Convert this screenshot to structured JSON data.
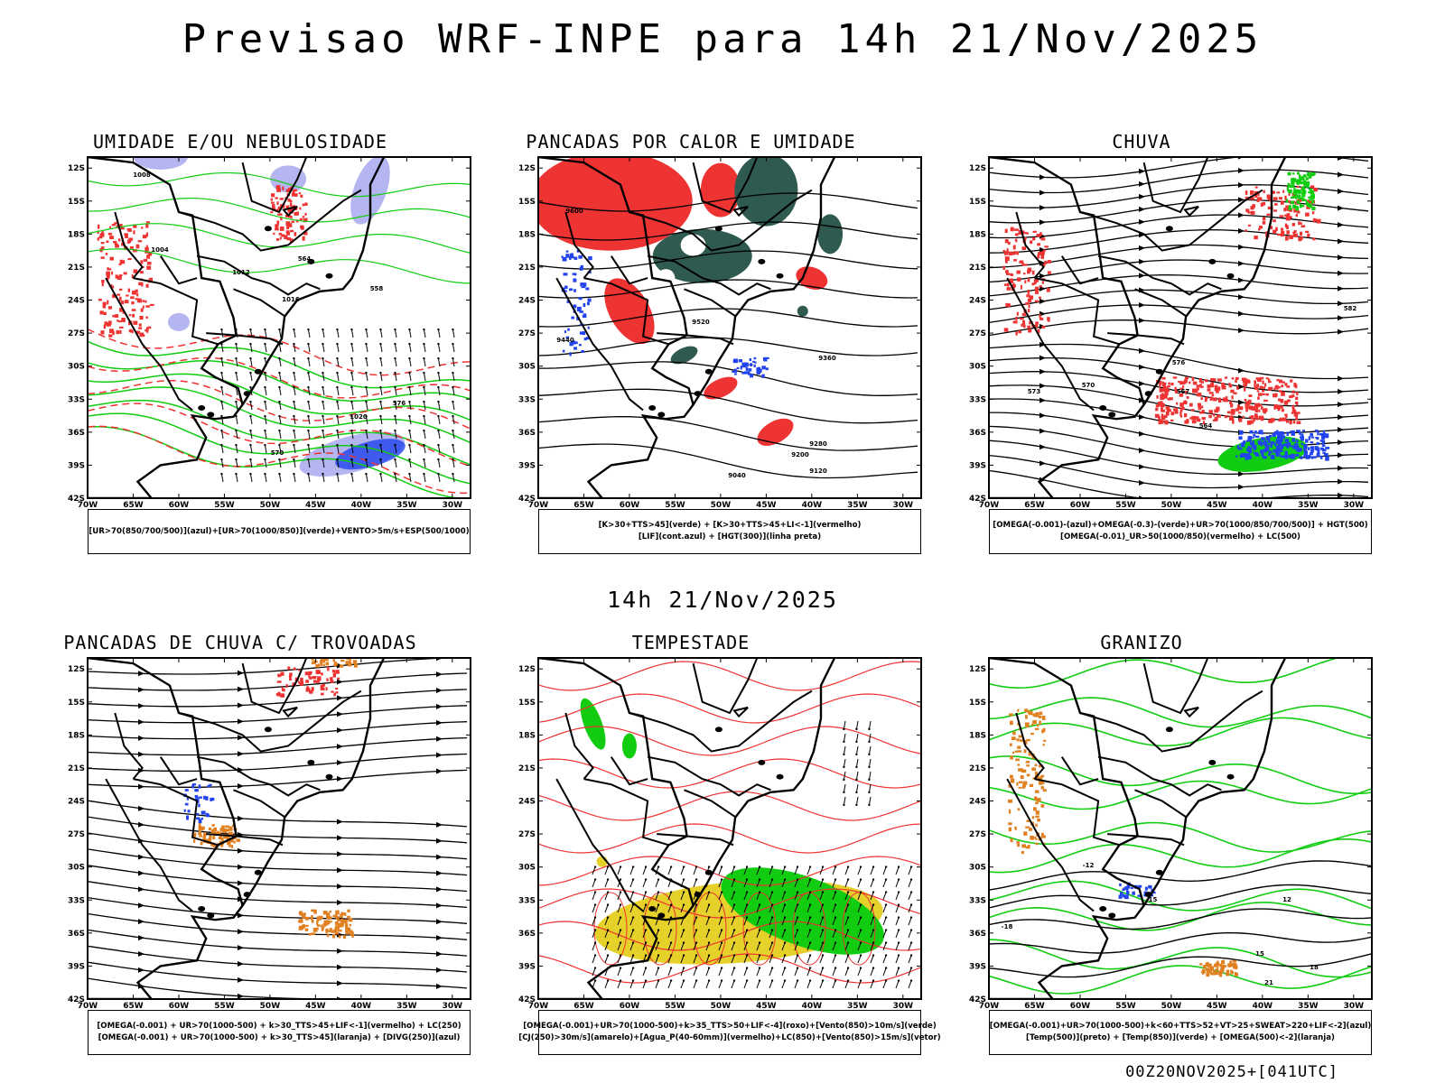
{
  "title": "Previsao WRF-INPE  para 14h 21/Nov/2025",
  "mid_title": "14h 21/Nov/2025",
  "footer": "00Z20NOV2025+[041UTC]",
  "axes": {
    "lat_labels": [
      "12S",
      "15S",
      "18S",
      "21S",
      "24S",
      "27S",
      "30S",
      "33S",
      "36S",
      "39S",
      "42S"
    ],
    "lon_labels": [
      "70W",
      "65W",
      "60W",
      "55W",
      "50W",
      "45W",
      "40W",
      "35W",
      "30W"
    ]
  },
  "panels": [
    {
      "title": "UMIDADE E/OU NEBULOSIDADE",
      "legend": [
        "[UR>70(850/700/500)](azul)+[UR>70(1000/850)](verde)+VENTO>5m/s+ESP(500/1000)"
      ],
      "contour_labels": [
        "1008",
        "1004",
        "1012",
        "1016",
        "1020",
        "576",
        "570",
        "564",
        "558"
      ]
    },
    {
      "title": "PANCADAS POR CALOR E UMIDADE",
      "legend": [
        "[K>30+TTS>45](verde) + [K>30+TTS>45+LI<-1](vermelho)",
        "[LIF](cont.azul) + [HGT(300)](linha preta)"
      ],
      "contour_labels": [
        "9600",
        "9520",
        "9440",
        "9360",
        "9280",
        "9200",
        "9120",
        "9040"
      ]
    },
    {
      "title": "CHUVA",
      "legend": [
        "[OMEGA(-0.001)-(azul)+OMEGA(-0.3)-(verde)+UR>70(1000/850/700/500)] + HGT(500)",
        "[OMEGA(-0.01)_UR>50(1000/850)(vermelho) + LC(500)"
      ],
      "contour_labels": [
        "576",
        "573",
        "570",
        "567",
        "564",
        "582"
      ]
    },
    {
      "title": "PANCADAS DE CHUVA C/ TROVOADAS",
      "legend": [
        "[OMEGA(-0.001) + UR>70(1000-500) + k>30_TTS>45+LIF<-1](vermelho) + LC(250)",
        "[OMEGA(-0.001) + UR>70(1000-500) + k>30_TTS>45](laranja) + [DIVG(250)](azul)"
      ],
      "contour_labels": []
    },
    {
      "title": "TEMPESTADE",
      "legend": [
        "[OMEGA(-0.001)+UR>70(1000-500)+k>35_TTS>50+LIF<-4](roxo)+[Vento(850)>10m/s](verde)",
        "[CJ(250)>30m/s](amarelo)+[Agua_P(40-60mm)](vermelho)+LC(850)+[Vento(850)>15m/s](vetor)"
      ],
      "contour_labels": []
    },
    {
      "title": "GRANIZO",
      "legend": [
        "[OMEGA(-0.001)+UR>70(1000-500)+k<60+TTS>52+VT>25+SWEAT>220+LIF<-2](azul)",
        "[Temp(500)](preto) + [Temp(850)](verde) + [OMEGA(500)<-2](laranja)"
      ],
      "contour_labels": [
        "-12",
        "-15",
        "-18",
        "12",
        "15",
        "18",
        "21"
      ]
    }
  ],
  "colors": {
    "red": "#ee3333",
    "green": "#11cc11",
    "blue": "#2244ee",
    "lilac": "#a8a8ee",
    "darkgreen": "#2f5a4f",
    "yellow": "#e6d02a",
    "orange": "#e08020"
  }
}
